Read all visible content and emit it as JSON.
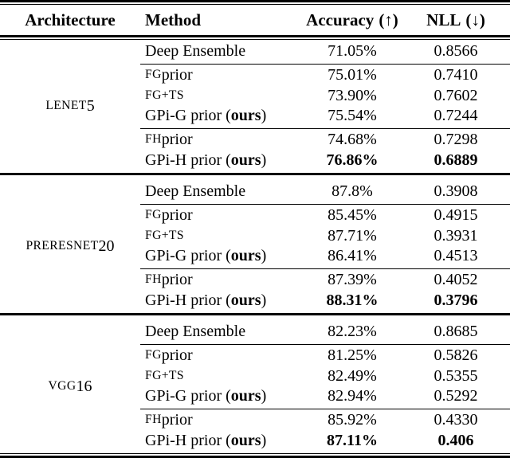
{
  "colors": {
    "text": "#000000",
    "background": "#ffffff",
    "rule": "#000000"
  },
  "header": {
    "architecture": "Architecture",
    "method": "Method",
    "accuracy": "Accuracy",
    "accuracy_arrow": "(↑)",
    "nll": "NLL",
    "nll_arrow": "(↓)"
  },
  "blocks": [
    {
      "architecture": {
        "sc": "lenet",
        "num": "5"
      },
      "rows": [
        {
          "sc": "",
          "mid": "Deep Ensemble",
          "ours": "",
          "end": "",
          "acc": "71.05%",
          "nll": "0.8566",
          "bold": false,
          "group_end": true
        },
        {
          "sc": "fg",
          "mid": " prior",
          "ours": "",
          "end": "",
          "acc": "75.01%",
          "nll": "0.7410",
          "bold": false,
          "group_end": false
        },
        {
          "sc": "fg+ts",
          "mid": "",
          "ours": "",
          "end": "",
          "acc": "73.90%",
          "nll": "0.7602",
          "bold": false,
          "group_end": false
        },
        {
          "sc": "",
          "mid": "GPi-G prior (",
          "ours": "ours",
          "end": ")",
          "acc": "75.54%",
          "nll": "0.7244",
          "bold": false,
          "group_end": true
        },
        {
          "sc": "fh",
          "mid": " prior",
          "ours": "",
          "end": "",
          "acc": "74.68%",
          "nll": "0.7298",
          "bold": false,
          "group_end": false
        },
        {
          "sc": "",
          "mid": "GPi-H prior (",
          "ours": "ours",
          "end": ")",
          "acc": "76.86%",
          "nll": "0.6889",
          "bold": true,
          "group_end": false
        }
      ]
    },
    {
      "architecture": {
        "sc": "preresnet",
        "num": "20"
      },
      "rows": [
        {
          "sc": "",
          "mid": "Deep Ensemble",
          "ours": "",
          "end": "",
          "acc": "87.8%",
          "nll": "0.3908",
          "bold": false,
          "group_end": true
        },
        {
          "sc": "fg",
          "mid": " prior",
          "ours": "",
          "end": "",
          "acc": "85.45%",
          "nll": "0.4915",
          "bold": false,
          "group_end": false
        },
        {
          "sc": "fg+ts",
          "mid": "",
          "ours": "",
          "end": "",
          "acc": "87.71%",
          "nll": "0.3931",
          "bold": false,
          "group_end": false
        },
        {
          "sc": "",
          "mid": "GPi-G prior (",
          "ours": "ours",
          "end": ")",
          "acc": "86.41%",
          "nll": "0.4513",
          "bold": false,
          "group_end": true
        },
        {
          "sc": "fh",
          "mid": " prior",
          "ours": "",
          "end": "",
          "acc": "87.39%",
          "nll": "0.4052",
          "bold": false,
          "group_end": false
        },
        {
          "sc": "",
          "mid": "GPi-H prior (",
          "ours": "ours",
          "end": ")",
          "acc": "88.31%",
          "nll": "0.3796",
          "bold": true,
          "group_end": false
        }
      ]
    },
    {
      "architecture": {
        "sc": "vgg",
        "num": "16"
      },
      "rows": [
        {
          "sc": "",
          "mid": "Deep Ensemble",
          "ours": "",
          "end": "",
          "acc": "82.23%",
          "nll": "0.8685",
          "bold": false,
          "group_end": true
        },
        {
          "sc": "fg",
          "mid": " prior",
          "ours": "",
          "end": "",
          "acc": "81.25%",
          "nll": "0.5826",
          "bold": false,
          "group_end": false
        },
        {
          "sc": "fg+ts",
          "mid": "",
          "ours": "",
          "end": "",
          "acc": "82.49%",
          "nll": "0.5355",
          "bold": false,
          "group_end": false
        },
        {
          "sc": "",
          "mid": "GPi-G prior (",
          "ours": "ours",
          "end": ")",
          "acc": "82.94%",
          "nll": "0.5292",
          "bold": false,
          "group_end": true
        },
        {
          "sc": "fh",
          "mid": " prior",
          "ours": "",
          "end": "",
          "acc": "85.92%",
          "nll": "0.4330",
          "bold": false,
          "group_end": false
        },
        {
          "sc": "",
          "mid": "GPi-H prior (",
          "ours": "ours",
          "end": ")",
          "acc": "87.11%",
          "nll": "0.406",
          "bold": true,
          "group_end": false
        }
      ]
    }
  ]
}
